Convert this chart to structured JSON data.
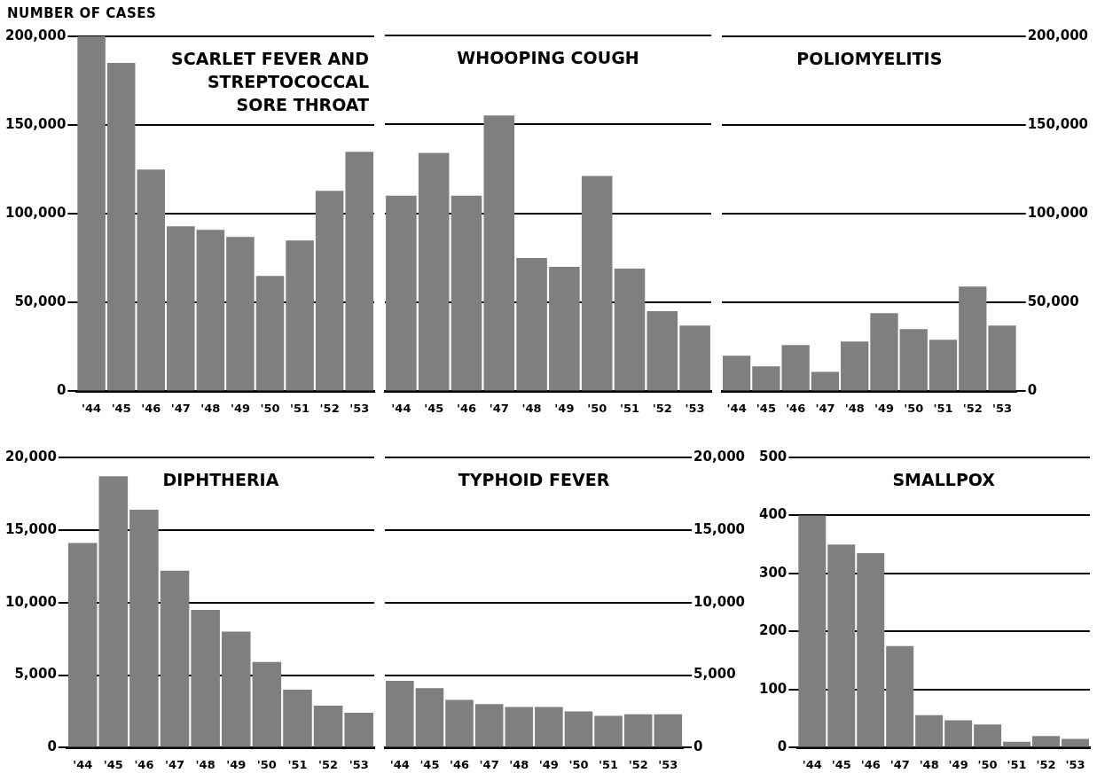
{
  "chart_data": [
    {
      "type": "bar",
      "title": "SCARLET FEVER AND STREPTOCOCCAL SORE THROAT",
      "ylabel": "NUMBER OF CASES",
      "categories": [
        "'44",
        "'45",
        "'46",
        "'47",
        "'48",
        "'49",
        "'50",
        "'51",
        "'52",
        "'53"
      ],
      "series": [
        {
          "color": "#7f7f7f",
          "values": [
            200000,
            185000,
            125000,
            93000,
            91000,
            87000,
            65000,
            85000,
            113000,
            135000
          ]
        }
      ],
      "ylim": [
        0,
        200000
      ],
      "yticks": [
        {
          "value": 0,
          "label": "0"
        },
        {
          "value": 50000,
          "label": "50,000"
        },
        {
          "value": 100000,
          "label": "100,000"
        },
        {
          "value": 150000,
          "label": "150,000"
        },
        {
          "value": 200000,
          "label": "200,000"
        }
      ],
      "grid": "y",
      "legend": false
    },
    {
      "type": "bar",
      "title": "WHOOPING COUGH",
      "categories": [
        "'44",
        "'45",
        "'46",
        "'47",
        "'48",
        "'49",
        "'50",
        "'51",
        "'52",
        "'53"
      ],
      "series": [
        {
          "color": "#7f7f7f",
          "values": [
            110000,
            134000,
            110000,
            155000,
            75000,
            70000,
            121000,
            69000,
            45000,
            37000
          ]
        }
      ],
      "ylim": [
        0,
        200000
      ],
      "yticks": [
        0,
        50000,
        100000,
        150000,
        200000
      ],
      "tick_labels": "x",
      "grid": "y",
      "legend": false
    },
    {
      "type": "bar",
      "title": "POLIOMYELITIS",
      "categories": [
        "'44",
        "'45",
        "'46",
        "'47",
        "'48",
        "'49",
        "'50",
        "'51",
        "'52",
        "'53"
      ],
      "series": [
        {
          "color": "#7f7f7f",
          "axis": "y2",
          "values": [
            20000,
            14000,
            26000,
            11000,
            28000,
            44000,
            35000,
            29000,
            59000,
            37000
          ]
        }
      ],
      "y2lim": [
        0,
        200000
      ],
      "y2ticks": [
        {
          "value": 0,
          "label": "0"
        },
        {
          "value": 50000,
          "label": "50,000"
        },
        {
          "value": 100000,
          "label": "100,000"
        },
        {
          "value": 150000,
          "label": "150,000"
        },
        {
          "value": 200000,
          "label": "200,000"
        }
      ],
      "grid": "y",
      "legend": false
    },
    {
      "type": "bar",
      "title": "DIPHTHERIA",
      "categories": [
        "'44",
        "'45",
        "'46",
        "'47",
        "'48",
        "'49",
        "'50",
        "'51",
        "'52",
        "'53"
      ],
      "series": [
        {
          "color": "#7f7f7f",
          "values": [
            14100,
            18700,
            16400,
            12200,
            9500,
            8000,
            5900,
            4000,
            2900,
            2400
          ]
        }
      ],
      "ylim": [
        0,
        20000
      ],
      "yticks": [
        {
          "value": 0,
          "label": "0"
        },
        {
          "value": 5000,
          "label": "5,000"
        },
        {
          "value": 10000,
          "label": "10,000"
        },
        {
          "value": 15000,
          "label": "15,000"
        },
        {
          "value": 20000,
          "label": "20,000"
        }
      ],
      "grid": "y",
      "legend": false
    },
    {
      "type": "bar",
      "title": "TYPHOID FEVER",
      "categories": [
        "'44",
        "'45",
        "'46",
        "'47",
        "'48",
        "'49",
        "'50",
        "'51",
        "'52",
        "'53"
      ],
      "series": [
        {
          "color": "#7f7f7f",
          "axis": "y2",
          "values": [
            4600,
            4100,
            3300,
            3000,
            2800,
            2800,
            2500,
            2200,
            2300,
            2300
          ]
        }
      ],
      "y2lim": [
        0,
        20000
      ],
      "y2ticks": [
        {
          "value": 0,
          "label": "0"
        },
        {
          "value": 5000,
          "label": "5,000"
        },
        {
          "value": 10000,
          "label": "10,000"
        },
        {
          "value": 15000,
          "label": "15,000"
        },
        {
          "value": 20000,
          "label": "20,000"
        }
      ],
      "grid": "y",
      "legend": false
    },
    {
      "type": "bar",
      "title": "SMALLPOX",
      "categories": [
        "'44",
        "'45",
        "'46",
        "'47",
        "'48",
        "'49",
        "'50",
        "'51",
        "'52",
        "'53"
      ],
      "series": [
        {
          "color": "#7f7f7f",
          "values": [
            400,
            350,
            335,
            175,
            56,
            47,
            40,
            10,
            20,
            15
          ]
        }
      ],
      "ylim": [
        0,
        500
      ],
      "yticks": [
        0,
        100,
        200,
        300,
        400,
        500
      ],
      "grid": "y",
      "legend": false
    }
  ]
}
